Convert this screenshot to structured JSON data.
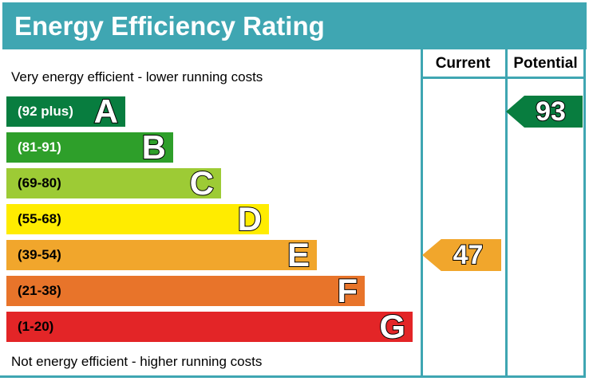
{
  "title": "Energy Efficiency Rating",
  "columns": {
    "current": "Current",
    "potential": "Potential"
  },
  "notes": {
    "top": "Very energy efficient - lower running costs",
    "bottom": "Not energy efficient - higher running costs"
  },
  "bands": [
    {
      "letter": "A",
      "range": "(92 plus)",
      "min": 92,
      "max": 100,
      "color": "#087d3f",
      "range_text_color": "#ffffff"
    },
    {
      "letter": "B",
      "range": "(81-91)",
      "min": 81,
      "max": 91,
      "color": "#2e9f2a",
      "range_text_color": "#ffffff"
    },
    {
      "letter": "C",
      "range": "(69-80)",
      "min": 69,
      "max": 80,
      "color": "#9dcb35",
      "range_text_color": "#000000"
    },
    {
      "letter": "D",
      "range": "(55-68)",
      "min": 55,
      "max": 68,
      "color": "#ffec00",
      "range_text_color": "#000000"
    },
    {
      "letter": "E",
      "range": "(39-54)",
      "min": 39,
      "max": 54,
      "color": "#f1a62c",
      "range_text_color": "#000000"
    },
    {
      "letter": "F",
      "range": "(21-38)",
      "min": 21,
      "max": 38,
      "color": "#e8742a",
      "range_text_color": "#000000"
    },
    {
      "letter": "G",
      "range": "(1-20)",
      "min": 1,
      "max": 20,
      "color": "#e32527",
      "range_text_color": "#000000"
    }
  ],
  "ratings": {
    "current": {
      "value": "47",
      "band": "E",
      "band_index": 4,
      "color": "#f1a62c"
    },
    "potential": {
      "value": "93",
      "band": "A",
      "band_index": 0,
      "color": "#087d3f"
    }
  },
  "accent_color": "#3fa6b2",
  "chart_data": {
    "type": "bar",
    "title": "Energy Efficiency Rating",
    "categories": [
      "A",
      "B",
      "C",
      "D",
      "E",
      "F",
      "G"
    ],
    "band_ranges": [
      "92 plus",
      "81-91",
      "69-80",
      "55-68",
      "39-54",
      "21-38",
      "1-20"
    ],
    "band_colors": [
      "#087d3f",
      "#2e9f2a",
      "#9dcb35",
      "#ffec00",
      "#f1a62c",
      "#e8742a",
      "#e32527"
    ],
    "series": [
      {
        "name": "Current",
        "value": 47,
        "band": "E"
      },
      {
        "name": "Potential",
        "value": 93,
        "band": "A"
      }
    ],
    "scale": [
      1,
      100
    ],
    "legend_position": "top-right-columns",
    "annotations": [
      "Very energy efficient - lower running costs",
      "Not energy efficient - higher running costs"
    ]
  }
}
